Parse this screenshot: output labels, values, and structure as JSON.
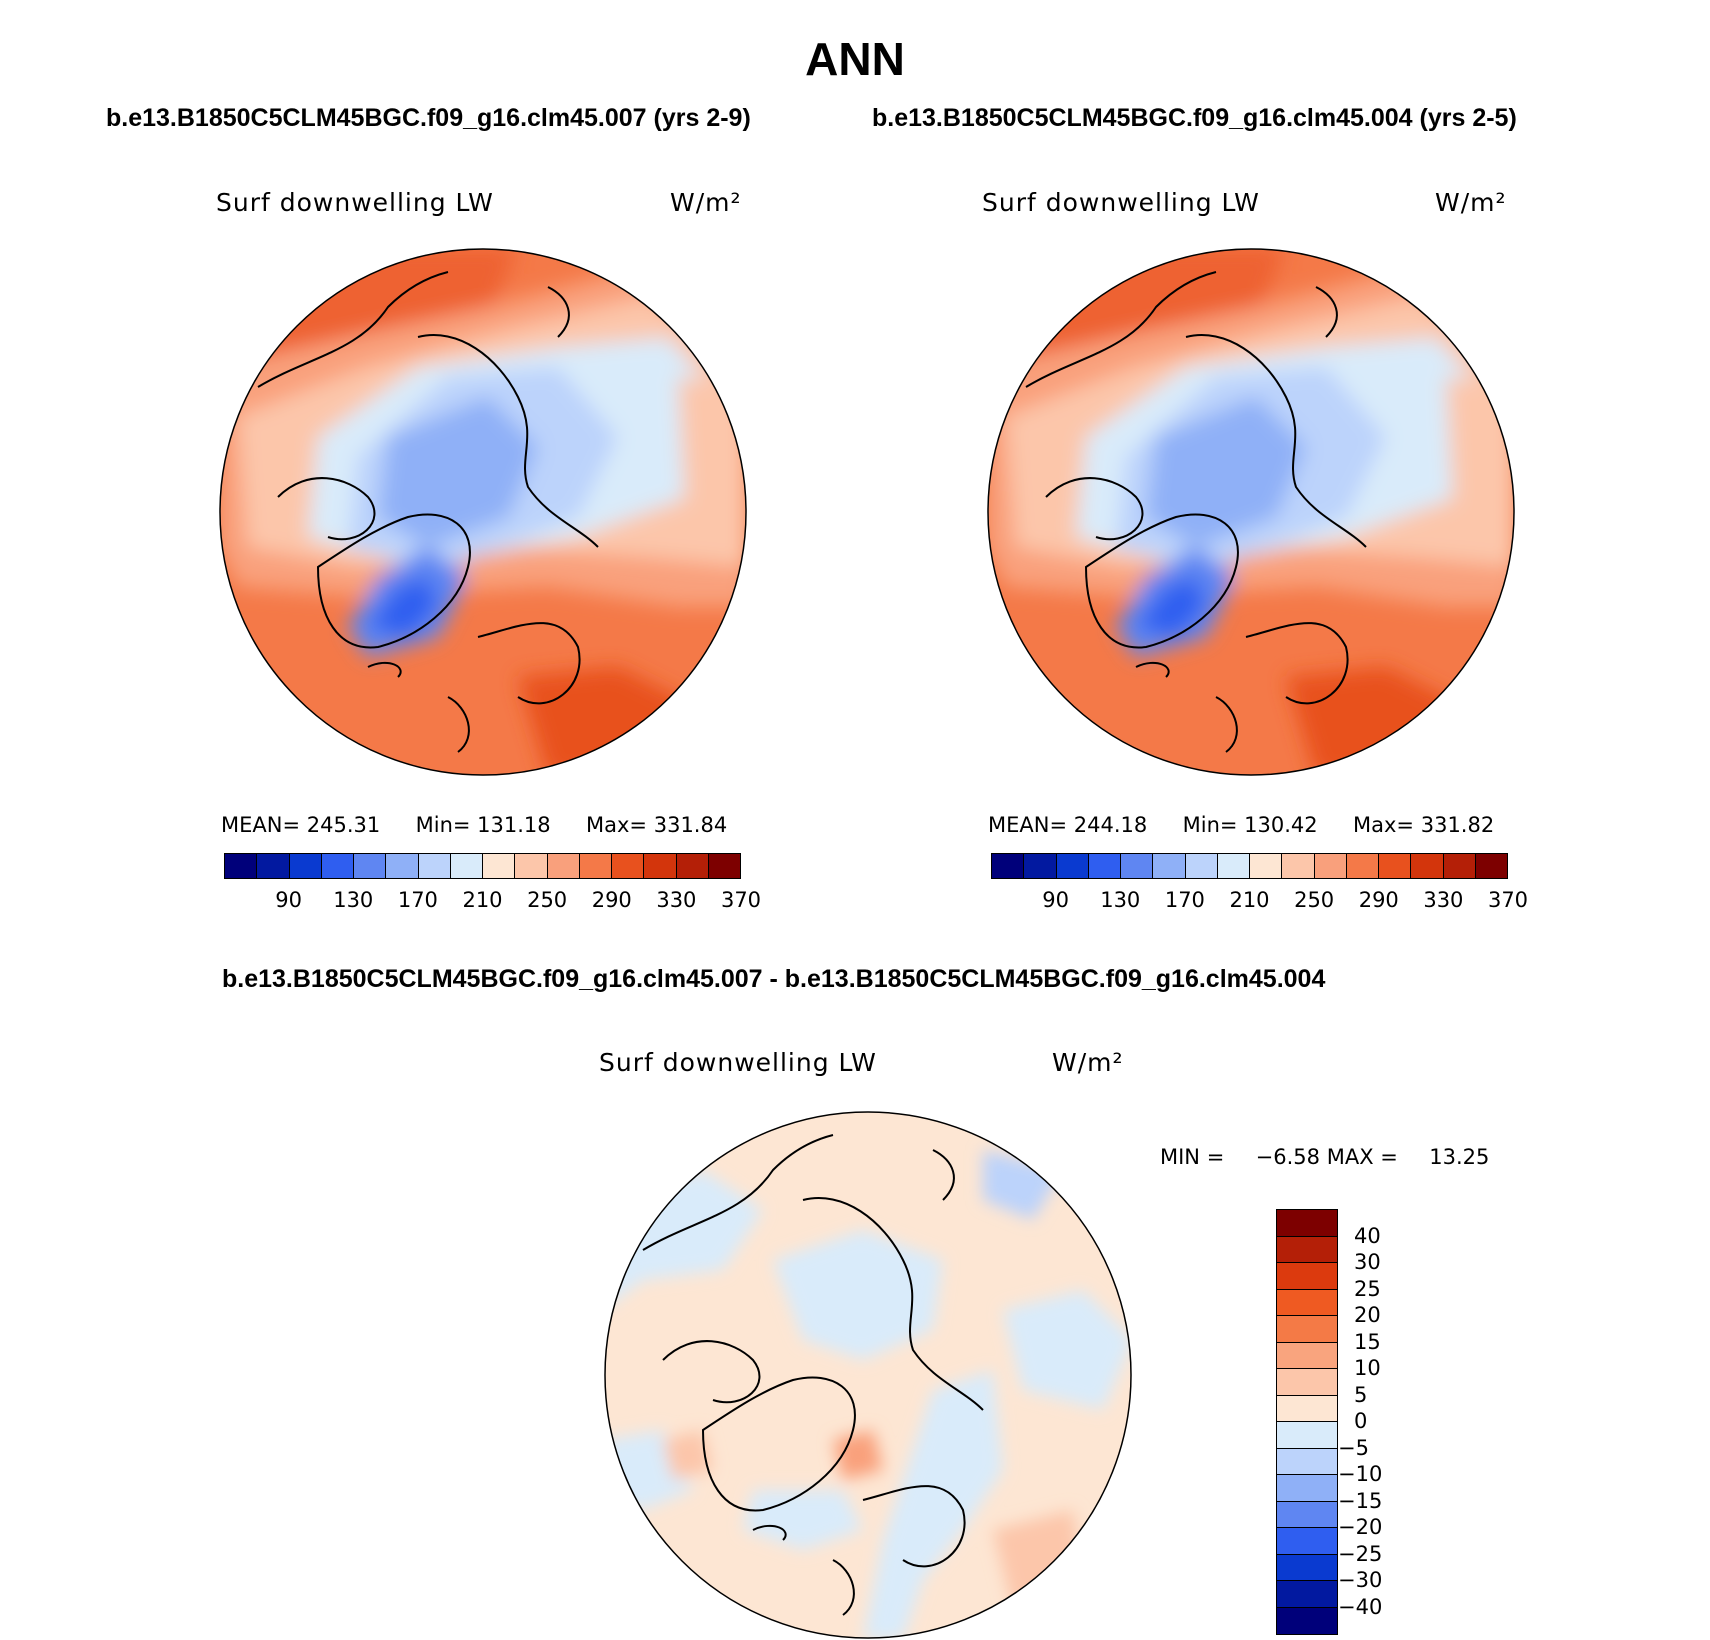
{
  "title": "ANN",
  "case1_header": "b.e13.B1850C5CLM45BGC.f09_g16.clm45.007 (yrs 2-9)",
  "case2_header": "b.e13.B1850C5CLM45BGC.f09_g16.clm45.004 (yrs 2-5)",
  "diff_header": "b.e13.B1850C5CLM45BGC.f09_g16.clm45.007 - b.e13.B1850C5CLM45BGC.f09_g16.clm45.004",
  "panels": [
    {
      "variable": "Surf downwelling LW",
      "units": "W/m²",
      "mean_label": "MEAN=",
      "mean": "245.31",
      "min_label": "Min=",
      "min": "131.18",
      "max_label": "Max=",
      "max": "331.84"
    },
    {
      "variable": "Surf downwelling LW",
      "units": "W/m²",
      "mean_label": "MEAN=",
      "mean": "244.18",
      "min_label": "Min=",
      "min": "130.42",
      "max_label": "Max=",
      "max": "331.82"
    }
  ],
  "diff_panel": {
    "variable": "Surf downwelling LW",
    "units": "W/m²",
    "min_label": "MIN =",
    "min": "−6.58",
    "max_label": "MAX =",
    "max": "13.25"
  },
  "abs_colorbar": {
    "colors": [
      "#00007a",
      "#0219a0",
      "#0a3ad0",
      "#2f5ef0",
      "#5f86f2",
      "#8fb0f7",
      "#bcd3fb",
      "#d9ebfa",
      "#fde6d3",
      "#fcc6aa",
      "#f9a07c",
      "#f47948",
      "#e8511e",
      "#d3350c",
      "#b41f07",
      "#7d0000"
    ],
    "tick_labels": [
      "90",
      "130",
      "170",
      "210",
      "250",
      "290",
      "330",
      "370"
    ]
  },
  "diff_colorbar": {
    "colors": [
      "#7d0000",
      "#b41f07",
      "#dc3a0e",
      "#ef5a22",
      "#f47a46",
      "#f9a47e",
      "#fcc6aa",
      "#fde6d3",
      "#d9ebfa",
      "#bcd3fb",
      "#8fb0f7",
      "#5f86f2",
      "#2f5ef0",
      "#0a3ad0",
      "#0219a0",
      "#00007a"
    ],
    "tick_labels": [
      "40",
      "30",
      "25",
      "20",
      "15",
      "10",
      "5",
      "0",
      "−5",
      "−10",
      "−15",
      "−20",
      "−25",
      "−30",
      "−40"
    ]
  }
}
